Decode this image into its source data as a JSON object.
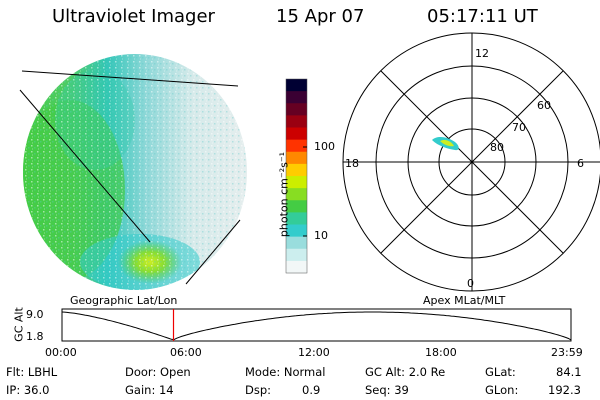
{
  "header": {
    "instrument": "Ultraviolet Imager",
    "date": "15 Apr 07",
    "time": "05:17:11 UT"
  },
  "colorbar": {
    "unit_label": "photon cm⁻²s⁻¹",
    "ticks": [
      "100",
      "10"
    ],
    "colors": [
      "#000033",
      "#3a0033",
      "#660022",
      "#9a0011",
      "#cc0000",
      "#ff3300",
      "#ff8800",
      "#ffcc00",
      "#ccee00",
      "#88dd22",
      "#44cc44",
      "#33cc99",
      "#33cccc",
      "#99dddd",
      "#cceeee",
      "#f2f7f7"
    ]
  },
  "polar": {
    "mlt_labels": {
      "top": "12",
      "left": "18",
      "right": "6",
      "bottom": "0"
    },
    "lat_labels": [
      "60",
      "70",
      "80"
    ]
  },
  "timeline": {
    "left_label": "Geographic Lat/Lon",
    "right_label": "Apex MLat/MLT",
    "y_axis_label": "GC Alt",
    "y_ticks": [
      "9.0",
      "1.8"
    ],
    "x_ticks": [
      "00:00",
      "06:00",
      "12:00",
      "18:00",
      "23:59"
    ],
    "current_time_fraction": 0.219
  },
  "info": {
    "filter": "Flt: LBHL",
    "ip": "IP: 36.0",
    "door": "Door: Open",
    "gain": "Gain: 14",
    "mode": "Mode: Normal",
    "dsp": "Dsp:",
    "dsp_value": "0.9",
    "gc_alt": "GC Alt: 2.0 Re",
    "seq": "Seq: 39",
    "glat": "GLat:",
    "glat_value": "84.1",
    "glon": "GLon:",
    "glon_value": "192.3"
  }
}
